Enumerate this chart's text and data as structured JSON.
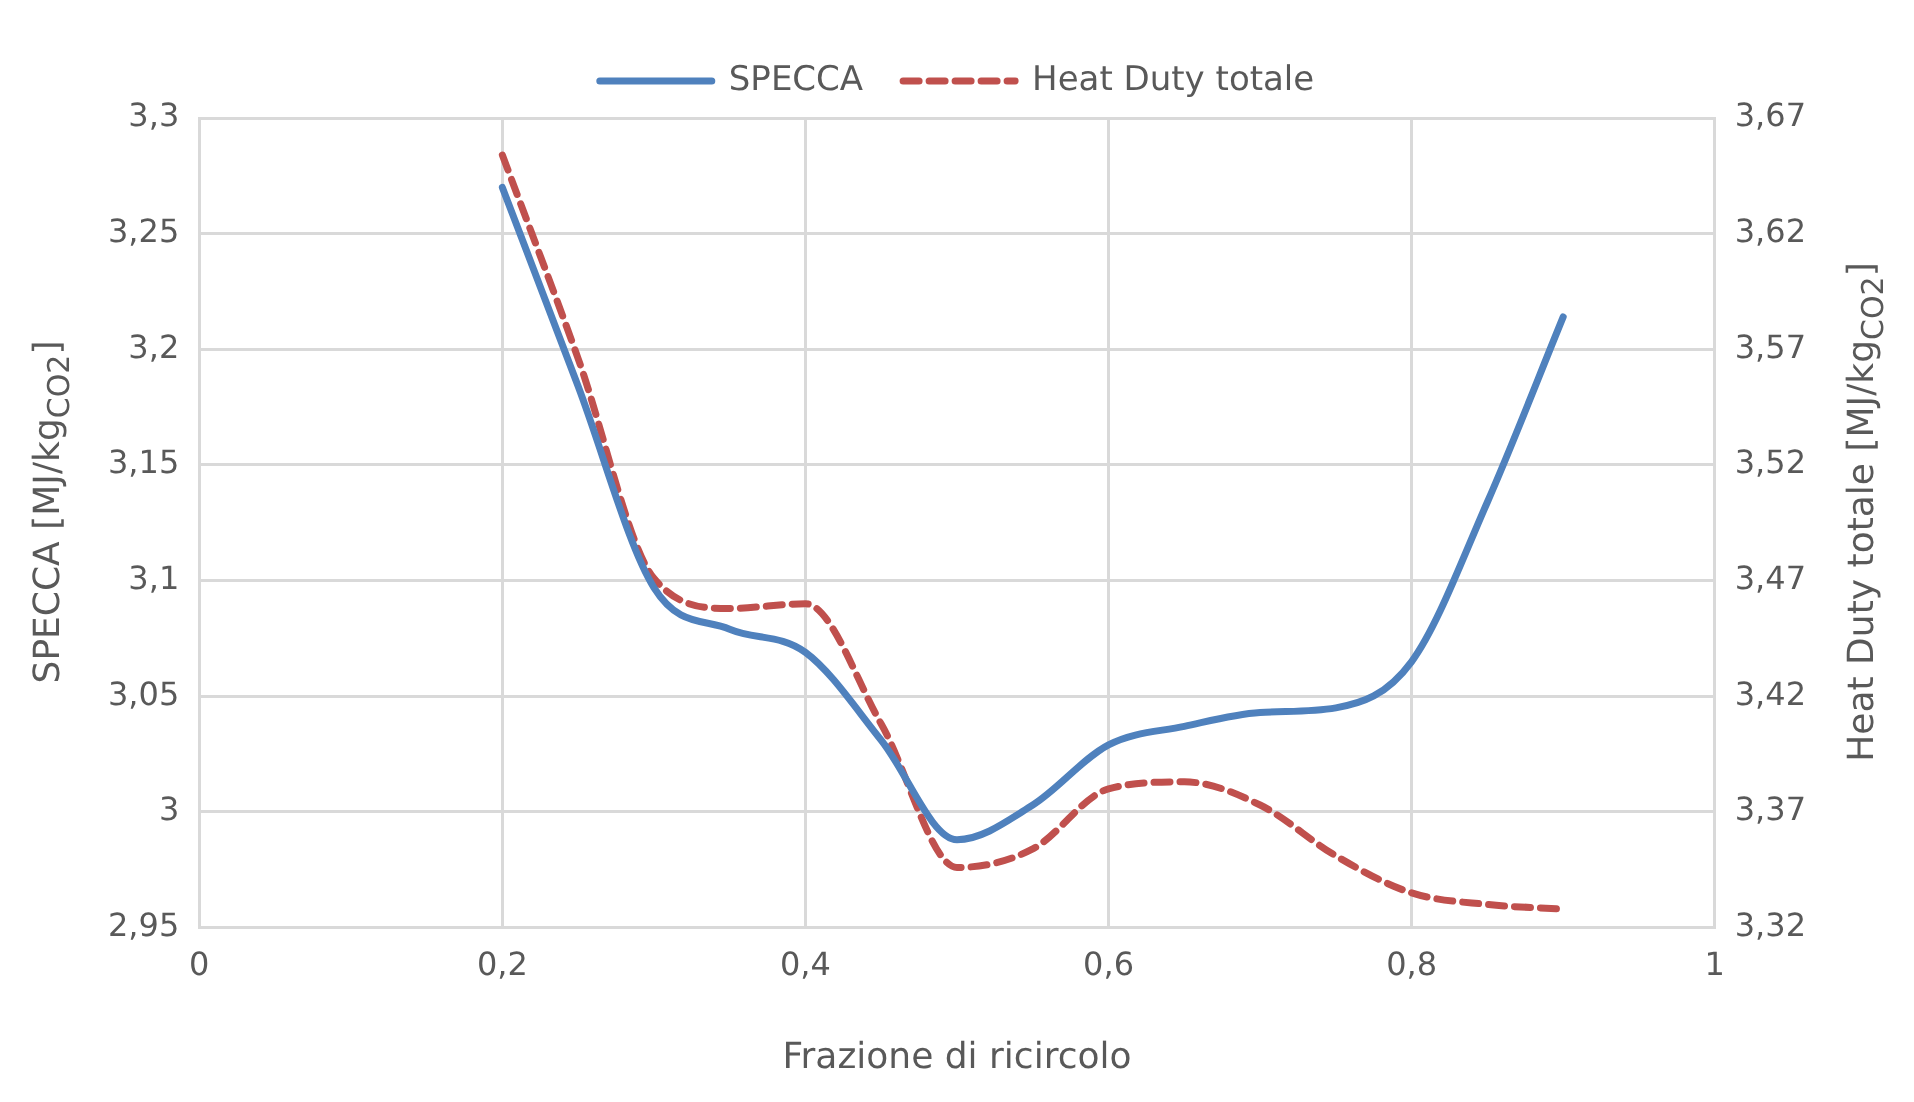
{
  "chart_data": {
    "type": "line",
    "xlabel": "Frazione di ricircolo",
    "ylabel": "SPECCA [MJ/kg$_{CO2}$]",
    "y2label": "Heat Duty totale [MJ/kg$_{CO2}$]",
    "x": [
      0.2,
      0.25,
      0.3,
      0.35,
      0.4,
      0.45,
      0.5,
      0.55,
      0.6,
      0.65,
      0.7,
      0.75,
      0.8,
      0.85,
      0.9
    ],
    "series": [
      {
        "name": "SPECCA",
        "color": "#4f81bd",
        "line_style": "solid",
        "values": [
          3.27,
          3.184,
          3.097,
          3.079,
          3.069,
          3.031,
          2.988,
          3.003,
          3.029,
          3.037,
          3.043,
          3.045,
          3.065,
          3.134,
          3.214
        ]
      },
      {
        "name": "Heat Duty totale",
        "color": "#c0504d",
        "line_style": "dashed",
        "axis": "y2",
        "values": [
          3.654,
          3.566,
          3.471,
          3.458,
          3.46,
          3.408,
          3.346,
          3.354,
          3.38,
          3.383,
          3.373,
          3.351,
          3.335,
          3.33,
          3.328
        ]
      }
    ],
    "xlim": [
      0,
      1
    ],
    "xticks": [
      0,
      {
        "value": 0.2,
        "label": "0,2"
      },
      {
        "value": 0.4,
        "label": "0,4"
      },
      {
        "value": 0.6,
        "label": "0,6"
      },
      {
        "value": 0.8,
        "label": "0,8"
      },
      1
    ],
    "ylim": [
      2.95,
      3.3
    ],
    "yticks": [
      {
        "value": 2.95,
        "label": "2,95"
      },
      3,
      {
        "value": 3.05,
        "label": "3,05"
      },
      {
        "value": 3.1,
        "label": "3,1"
      },
      {
        "value": 3.15,
        "label": "3,15"
      },
      {
        "value": 3.2,
        "label": "3,2"
      },
      {
        "value": 3.25,
        "label": "3,25"
      },
      {
        "value": 3.3,
        "label": "3,3"
      }
    ],
    "y2lim": [
      3.32,
      3.67
    ],
    "y2ticks": [
      {
        "value": 3.32,
        "label": "3,32"
      },
      {
        "value": 3.37,
        "label": "3,37"
      },
      {
        "value": 3.42,
        "label": "3,42"
      },
      {
        "value": 3.47,
        "label": "3,47"
      },
      {
        "value": 3.52,
        "label": "3,52"
      },
      {
        "value": 3.57,
        "label": "3,57"
      },
      {
        "value": 3.62,
        "label": "3,62"
      },
      {
        "value": 3.67,
        "label": "3,67"
      }
    ],
    "grid": true,
    "legend": "top",
    "marker": "none"
  }
}
